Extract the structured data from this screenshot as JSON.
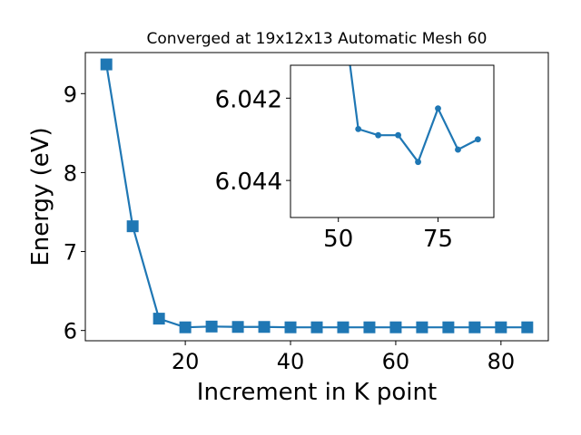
{
  "chart_data": [
    {
      "type": "line",
      "title": "Converged at 19x12x13 Automatic Mesh 60",
      "xlabel": "Increment in K point",
      "ylabel": "Energy (eV)",
      "xlim": [
        1.0,
        89.0
      ],
      "ylim": [
        5.87,
        9.52
      ],
      "xticks": [
        20,
        40,
        60,
        80
      ],
      "yticks": [
        6,
        7,
        8,
        9
      ],
      "grid": false,
      "marker": "square",
      "color": "#1f77b4",
      "series": [
        {
          "x": [
            5,
            10,
            15,
            20,
            25,
            30,
            35,
            40,
            45,
            50,
            55,
            60,
            65,
            70,
            75,
            80,
            85
          ],
          "y": [
            9.37,
            7.32,
            6.15,
            6.04,
            6.05,
            6.045,
            6.045,
            6.04,
            6.04,
            6.04,
            6.04,
            6.04,
            6.04,
            6.04,
            6.04,
            6.04,
            6.04
          ]
        }
      ]
    },
    {
      "type": "line",
      "title": "",
      "xlabel": "",
      "ylabel": "",
      "inset": true,
      "xlim": [
        38.0,
        89.0
      ],
      "ylim": [
        6.0449,
        6.0412
      ],
      "xticks": [
        50,
        75
      ],
      "yticks": [
        6.042,
        6.044
      ],
      "y_inverted": true,
      "grid": false,
      "marker": "circle",
      "color": "#1f77b4",
      "series": [
        {
          "x": [
            50,
            55,
            60,
            65,
            70,
            75,
            80,
            85
          ],
          "y": [
            6.039,
            6.04275,
            6.0429,
            6.0429,
            6.04355,
            6.04225,
            6.04325,
            6.043
          ]
        }
      ]
    }
  ]
}
